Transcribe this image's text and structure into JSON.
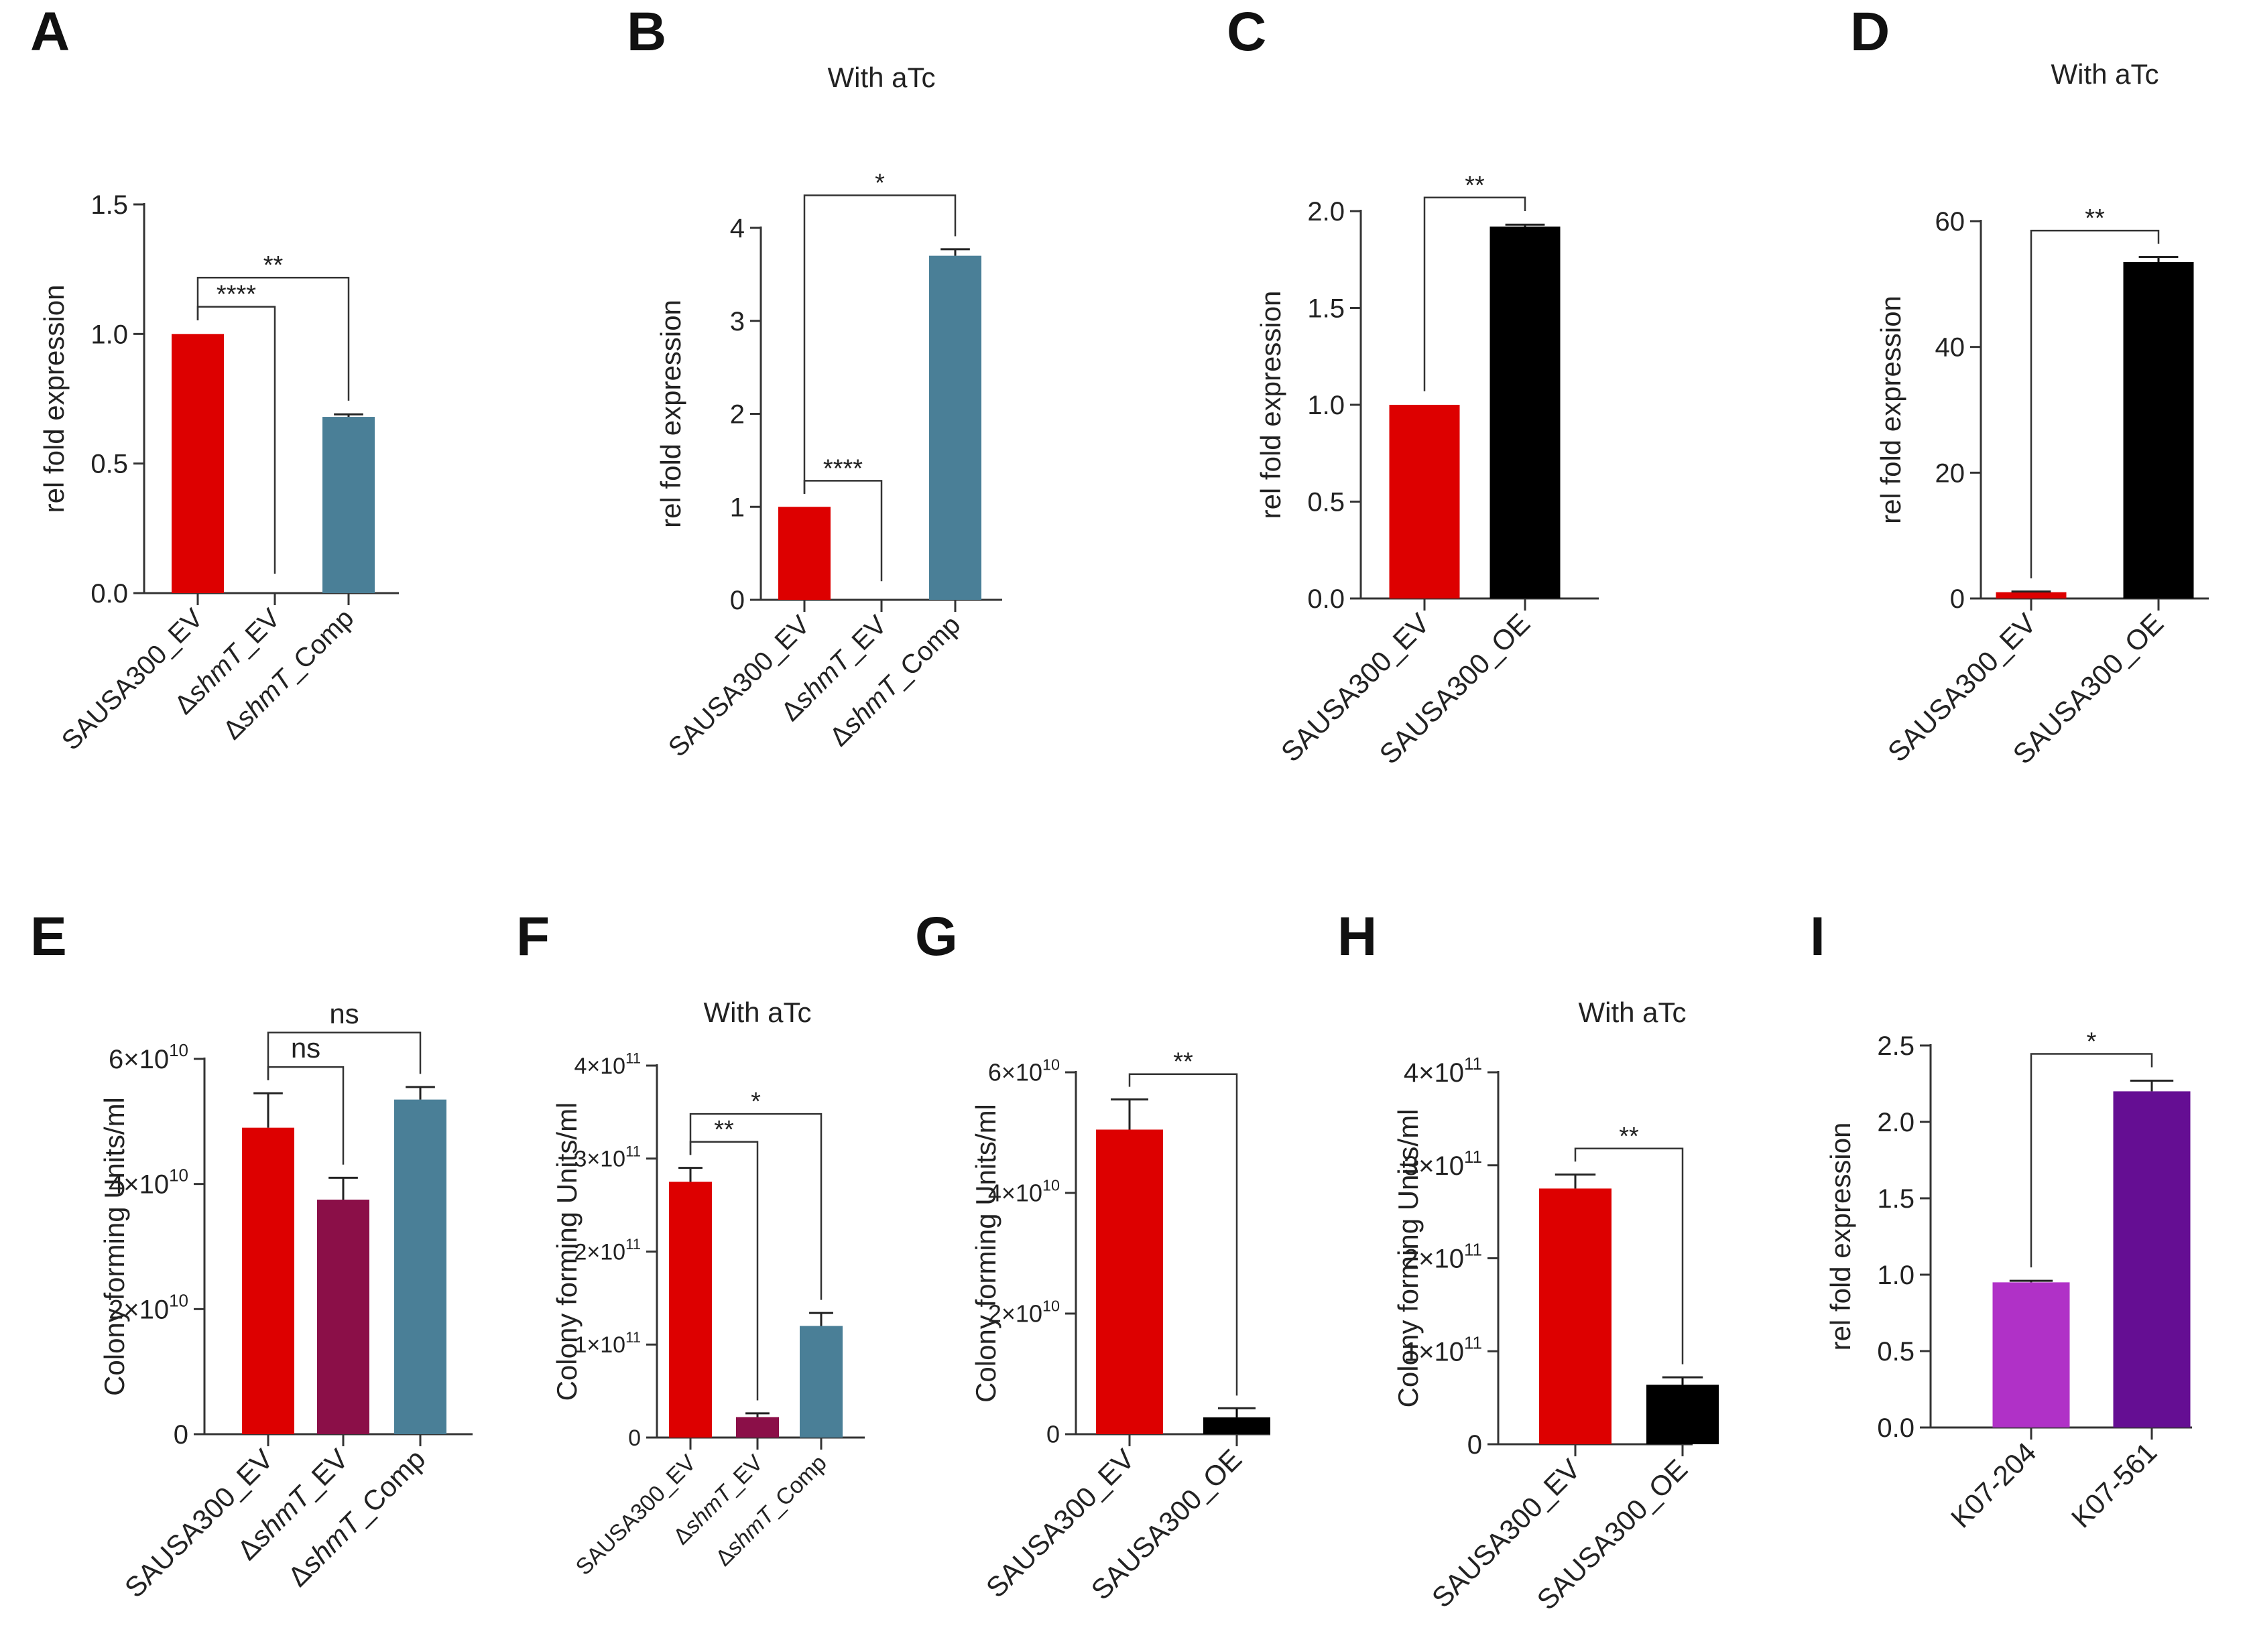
{
  "colors": {
    "red": "#dd0000",
    "maroon": "#8b0f48",
    "teal": "#4a7f97",
    "black": "#000000",
    "magenta": "#b031c7",
    "purple": "#650e93",
    "axis": "#333333"
  },
  "chart_data": [
    {
      "id": "A",
      "panel_label": "A",
      "type": "bar",
      "title": "",
      "ylabel": "rel fold expression",
      "xlabel": "",
      "ylim": [
        0,
        1.5
      ],
      "yticks": [
        {
          "v": 0,
          "label": "0.0"
        },
        {
          "v": 0.5,
          "label": "0.5"
        },
        {
          "v": 1.0,
          "label": "1.0"
        },
        {
          "v": 1.5,
          "label": "1.5"
        }
      ],
      "bars": [
        {
          "label": "SAUSA300_EV",
          "value": 1.0,
          "error": 0.0,
          "color": "#dd0000"
        },
        {
          "label": "ΔshmT_EV",
          "value": 0.0,
          "error": 0.0,
          "color": "#dd0000"
        },
        {
          "label": "ΔshmT_Comp",
          "value": 0.68,
          "error": 0.01,
          "color": "#4a7f97"
        }
      ],
      "significance": [
        {
          "from": 0,
          "to": 1,
          "label": "****"
        },
        {
          "from": 0,
          "to": 2,
          "label": "**"
        }
      ]
    },
    {
      "id": "B",
      "panel_label": "B",
      "type": "bar",
      "title": "With aTc",
      "ylabel": "rel fold expression",
      "xlabel": "",
      "ylim": [
        0,
        4
      ],
      "yticks": [
        {
          "v": 0,
          "label": "0"
        },
        {
          "v": 1,
          "label": "1"
        },
        {
          "v": 2,
          "label": "2"
        },
        {
          "v": 3,
          "label": "3"
        },
        {
          "v": 4,
          "label": "4"
        }
      ],
      "bars": [
        {
          "label": "SAUSA300_EV",
          "value": 1.0,
          "error": 0.0,
          "color": "#dd0000"
        },
        {
          "label": "ΔshmT_EV",
          "value": 0.0,
          "error": 0.0,
          "color": "#dd0000"
        },
        {
          "label": "ΔshmT_Comp",
          "value": 3.7,
          "error": 0.07,
          "color": "#4a7f97"
        }
      ],
      "significance": [
        {
          "from": 0,
          "to": 1,
          "label": "****"
        },
        {
          "from": 0,
          "to": 2,
          "label": "*"
        }
      ]
    },
    {
      "id": "C",
      "panel_label": "C",
      "type": "bar",
      "title": "",
      "ylabel": "rel fold expression",
      "xlabel": "",
      "ylim": [
        0,
        2.0
      ],
      "yticks": [
        {
          "v": 0,
          "label": "0.0"
        },
        {
          "v": 0.5,
          "label": "0.5"
        },
        {
          "v": 1.0,
          "label": "1.0"
        },
        {
          "v": 1.5,
          "label": "1.5"
        },
        {
          "v": 2.0,
          "label": "2.0"
        }
      ],
      "bars": [
        {
          "label": "SAUSA300_EV",
          "value": 1.0,
          "error": 0.0,
          "color": "#dd0000"
        },
        {
          "label": "SAUSA300_OE",
          "value": 1.92,
          "error": 0.01,
          "color": "#000000"
        }
      ],
      "significance": [
        {
          "from": 0,
          "to": 1,
          "label": "**"
        }
      ]
    },
    {
      "id": "D",
      "panel_label": "D",
      "type": "bar",
      "title": "With aTc",
      "ylabel": "rel fold expression",
      "xlabel": "",
      "ylim": [
        0,
        60
      ],
      "yticks": [
        {
          "v": 0,
          "label": "0"
        },
        {
          "v": 20,
          "label": "20"
        },
        {
          "v": 40,
          "label": "40"
        },
        {
          "v": 60,
          "label": "60"
        }
      ],
      "bars": [
        {
          "label": "SAUSA300_EV",
          "value": 1.0,
          "error": 0.1,
          "color": "#dd0000"
        },
        {
          "label": "SAUSA300_OE",
          "value": 53.5,
          "error": 0.8,
          "color": "#000000"
        }
      ],
      "significance": [
        {
          "from": 0,
          "to": 1,
          "label": "**"
        }
      ]
    },
    {
      "id": "E",
      "panel_label": "E",
      "type": "bar",
      "title": "",
      "ylabel": "Colony forming Units/ml",
      "xlabel": "",
      "ylim": [
        0,
        60000000000
      ],
      "yticks": [
        {
          "v": 0,
          "label": "0"
        },
        {
          "v": 20000000000,
          "label": "2×10",
          "exp": "10"
        },
        {
          "v": 40000000000,
          "label": "4×10",
          "exp": "10"
        },
        {
          "v": 60000000000,
          "label": "6×10",
          "exp": "10"
        }
      ],
      "bars": [
        {
          "label": "SAUSA300_EV",
          "value": 49000000000,
          "error": 5500000000,
          "color": "#dd0000"
        },
        {
          "label": "ΔshmT_EV",
          "value": 37500000000,
          "error": 3500000000,
          "color": "#8b0f48"
        },
        {
          "label": "ΔshmT_Comp",
          "value": 53500000000,
          "error": 2000000000,
          "color": "#4a7f97"
        }
      ],
      "significance": [
        {
          "from": 0,
          "to": 1,
          "label": "ns"
        },
        {
          "from": 0,
          "to": 2,
          "label": "ns"
        }
      ]
    },
    {
      "id": "F",
      "panel_label": "F",
      "type": "bar",
      "title": "With aTc",
      "ylabel": "Colony forming Units/ml",
      "xlabel": "",
      "ylim": [
        0,
        400000000000
      ],
      "yticks": [
        {
          "v": 0,
          "label": "0"
        },
        {
          "v": 100000000000,
          "label": "1×10",
          "exp": "11"
        },
        {
          "v": 200000000000,
          "label": "2×10",
          "exp": "11"
        },
        {
          "v": 300000000000,
          "label": "3×10",
          "exp": "11"
        },
        {
          "v": 400000000000,
          "label": "4×10",
          "exp": "11"
        }
      ],
      "bars": [
        {
          "label": "SAUSA300_EV",
          "value": 275000000000,
          "error": 15000000000,
          "color": "#dd0000"
        },
        {
          "label": "ΔshmT_EV",
          "value": 22000000000,
          "error": 4000000000,
          "color": "#8b0f48"
        },
        {
          "label": "ΔshmT_Comp",
          "value": 120000000000,
          "error": 14000000000,
          "color": "#4a7f97"
        }
      ],
      "significance": [
        {
          "from": 0,
          "to": 1,
          "label": "**"
        },
        {
          "from": 0,
          "to": 2,
          "label": "*"
        }
      ]
    },
    {
      "id": "G",
      "panel_label": "G",
      "type": "bar",
      "title": "",
      "ylabel": "Colony forming Units/ml",
      "xlabel": "",
      "ylim": [
        0,
        60000000000
      ],
      "yticks": [
        {
          "v": 0,
          "label": "0"
        },
        {
          "v": 20000000000,
          "label": "2×10",
          "exp": "10"
        },
        {
          "v": 40000000000,
          "label": "4×10",
          "exp": "10"
        },
        {
          "v": 60000000000,
          "label": "6×10",
          "exp": "10"
        }
      ],
      "bars": [
        {
          "label": "SAUSA300_EV",
          "value": 50500000000,
          "error": 5000000000,
          "color": "#dd0000"
        },
        {
          "label": "SAUSA300_OE",
          "value": 2800000000,
          "error": 1500000000,
          "color": "#000000"
        }
      ],
      "significance": [
        {
          "from": 0,
          "to": 1,
          "label": "**"
        }
      ]
    },
    {
      "id": "H",
      "panel_label": "H",
      "type": "bar",
      "title": "With aTc",
      "ylabel": "Colony forming Units/ml",
      "xlabel": "",
      "ylim": [
        0,
        400000000000
      ],
      "yticks": [
        {
          "v": 0,
          "label": "0"
        },
        {
          "v": 100000000000,
          "label": "1×10",
          "exp": "11"
        },
        {
          "v": 200000000000,
          "label": "2×10",
          "exp": "11"
        },
        {
          "v": 300000000000,
          "label": "3×10",
          "exp": "11"
        },
        {
          "v": 400000000000,
          "label": "4×10",
          "exp": "11"
        }
      ],
      "bars": [
        {
          "label": "SAUSA300_EV",
          "value": 275000000000,
          "error": 15000000000,
          "color": "#dd0000"
        },
        {
          "label": "SAUSA300_OE",
          "value": 64000000000,
          "error": 8000000000,
          "color": "#000000"
        }
      ],
      "significance": [
        {
          "from": 0,
          "to": 1,
          "label": "**"
        }
      ]
    },
    {
      "id": "I",
      "panel_label": "I",
      "type": "bar",
      "title": "",
      "ylabel": "rel fold expression",
      "xlabel": "",
      "ylim": [
        0,
        2.5
      ],
      "yticks": [
        {
          "v": 0,
          "label": "0.0"
        },
        {
          "v": 0.5,
          "label": "0.5"
        },
        {
          "v": 1.0,
          "label": "1.0"
        },
        {
          "v": 1.5,
          "label": "1.5"
        },
        {
          "v": 2.0,
          "label": "2.0"
        },
        {
          "v": 2.5,
          "label": "2.5"
        }
      ],
      "bars": [
        {
          "label": "K07-204",
          "value": 0.95,
          "error": 0.01,
          "color": "#b031c7"
        },
        {
          "label": "K07-561",
          "value": 2.2,
          "error": 0.07,
          "color": "#650e93"
        }
      ],
      "significance": [
        {
          "from": 0,
          "to": 1,
          "label": "*"
        }
      ]
    }
  ]
}
